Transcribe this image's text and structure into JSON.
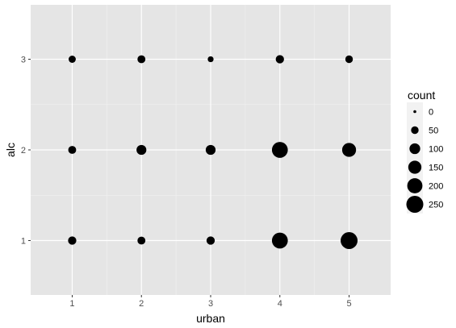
{
  "chart_data": {
    "type": "scatter",
    "xlabel": "urban",
    "ylabel": "alc",
    "x_ticks": [
      "1",
      "2",
      "3",
      "4",
      "5"
    ],
    "y_ticks": [
      "1",
      "2",
      "3"
    ],
    "xlim": [
      0.4,
      5.6
    ],
    "ylim": [
      0.4,
      3.6
    ],
    "grid": true,
    "size_variable": "count",
    "points": [
      {
        "x": 1,
        "y": 1,
        "count": 60
      },
      {
        "x": 2,
        "y": 1,
        "count": 55
      },
      {
        "x": 3,
        "y": 1,
        "count": 60
      },
      {
        "x": 4,
        "y": 1,
        "count": 220
      },
      {
        "x": 5,
        "y": 1,
        "count": 250
      },
      {
        "x": 1,
        "y": 2,
        "count": 55
      },
      {
        "x": 2,
        "y": 2,
        "count": 85
      },
      {
        "x": 3,
        "y": 2,
        "count": 85
      },
      {
        "x": 4,
        "y": 2,
        "count": 220
      },
      {
        "x": 5,
        "y": 2,
        "count": 170
      },
      {
        "x": 1,
        "y": 3,
        "count": 45
      },
      {
        "x": 2,
        "y": 3,
        "count": 55
      },
      {
        "x": 3,
        "y": 3,
        "count": 30
      },
      {
        "x": 4,
        "y": 3,
        "count": 60
      },
      {
        "x": 5,
        "y": 3,
        "count": 50
      }
    ],
    "legend": {
      "title": "count",
      "placement": "right",
      "entries": [
        {
          "label": "0",
          "value": 0
        },
        {
          "label": "50",
          "value": 50
        },
        {
          "label": "100",
          "value": 100
        },
        {
          "label": "150",
          "value": 150
        },
        {
          "label": "200",
          "value": 200
        },
        {
          "label": "250",
          "value": 250
        }
      ]
    },
    "colors": {
      "panel": "#e5e5e5",
      "grid_major": "#ffffff",
      "point": "#000000"
    }
  }
}
